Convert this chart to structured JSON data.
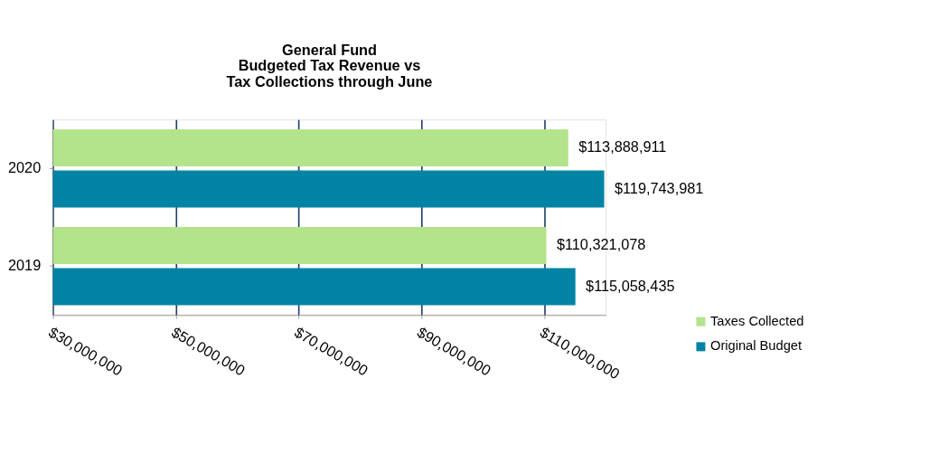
{
  "chart_data": {
    "type": "bar",
    "orientation": "horizontal",
    "title": "General Fund\nBudgeted Tax Revenue vs\nTax Collections through June",
    "categories": [
      "2020",
      "2019"
    ],
    "series": [
      {
        "name": "Taxes Collected",
        "color": "#b3e38a",
        "values": [
          113888911,
          110321078
        ],
        "value_labels": [
          "$113,888,911",
          "$110,321,078"
        ]
      },
      {
        "name": "Original Budget",
        "color": "#0083a4",
        "values": [
          119743981,
          115058435
        ],
        "value_labels": [
          "$119,743,981",
          "$115,058,435"
        ]
      }
    ],
    "xlim": [
      30000000,
      120000000
    ],
    "xticks": [
      {
        "value": 30000000,
        "label": "$30,000,000"
      },
      {
        "value": 50000000,
        "label": "$50,000,000"
      },
      {
        "value": 70000000,
        "label": "$70,000,000"
      },
      {
        "value": 90000000,
        "label": "$90,000,000"
      },
      {
        "value": 110000000,
        "label": "$110,000,000"
      }
    ],
    "grid": "x",
    "legend": "bottom right"
  }
}
